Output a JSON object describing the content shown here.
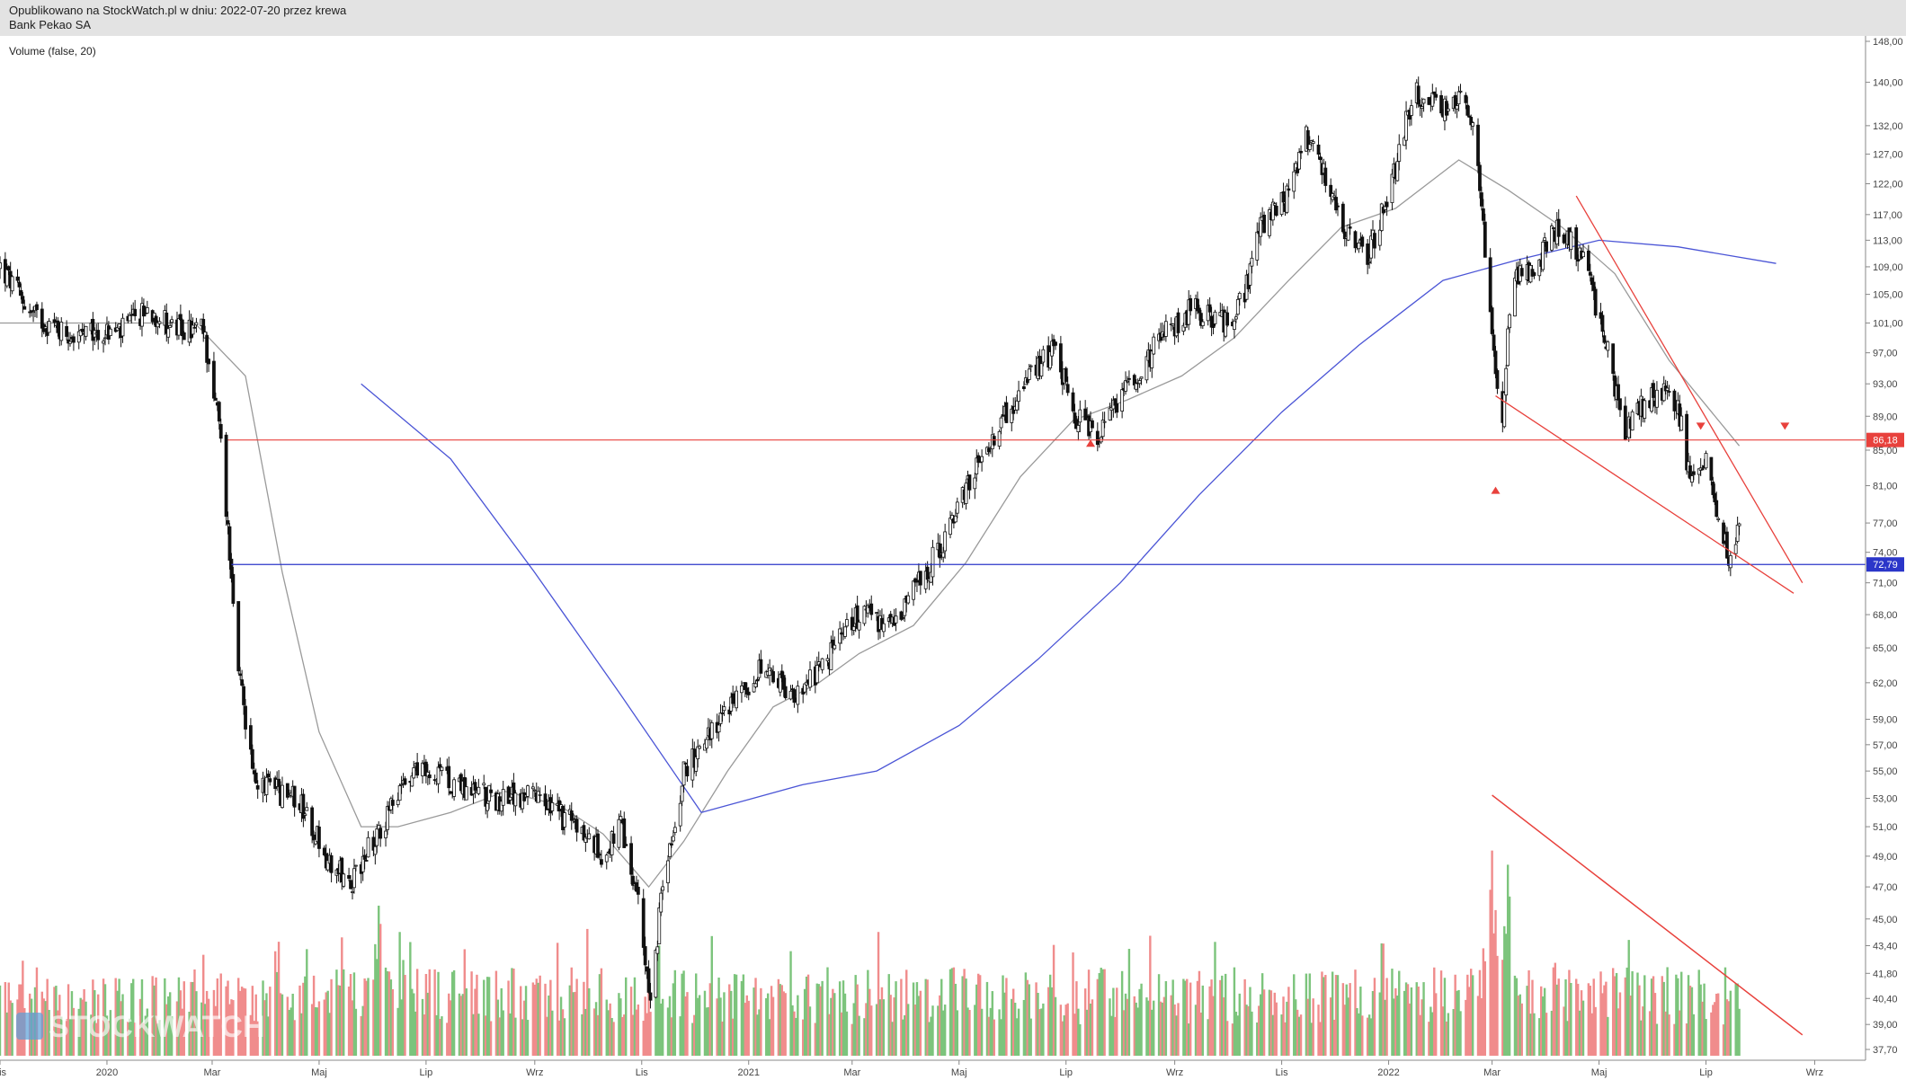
{
  "header": {
    "line1": "Opublikowano na StockWatch.pl w dniu: 2022-07-20 przez krewa",
    "line2": "Bank Pekao SA"
  },
  "indicator_label": "Volume (false, 20)",
  "logo_text": "STOCKWATCH",
  "colors": {
    "candle": "#111111",
    "ma_gray": "#9a9a9a",
    "ma_blue": "#4b55d6",
    "resistance": "#e8413c",
    "support": "#2b36c9",
    "vol_up": "#7cc47c",
    "vol_down": "#f08c8c",
    "header_bg": "#e3e3e3"
  },
  "chart_data": {
    "type": "candlestick",
    "title": "Bank Pekao SA",
    "y_axis_ticks": [
      "148,00",
      "140,00",
      "132,00",
      "127,00",
      "122,00",
      "117,00",
      "113,00",
      "109,00",
      "105,00",
      "101,00",
      "97,00",
      "93,00",
      "89,00",
      "85,00",
      "81,00",
      "77,00",
      "74,00",
      "71,00",
      "68,00",
      "65,00",
      "62,00",
      "59,00",
      "57,00",
      "55,00",
      "53,00",
      "51,00",
      "49,00",
      "47,00",
      "45,00",
      "43,40",
      "41,80",
      "40,40",
      "39,00",
      "37,70"
    ],
    "ylim": [
      37.7,
      148.0
    ],
    "y_scale": "log",
    "x_axis_ticks": [
      "Lis",
      "2020",
      "Mar",
      "Maj",
      "Lip",
      "Wrz",
      "Lis",
      "2021",
      "Mar",
      "Maj",
      "Lip",
      "Wrz",
      "Lis",
      "2022",
      "Mar",
      "Maj",
      "Lip",
      "Wrz"
    ],
    "x_start": "2019-11-01",
    "x_end": "2022-09-30",
    "price_path": [
      [
        "2019-11-01",
        109
      ],
      [
        "2019-11-20",
        102
      ],
      [
        "2019-12-15",
        99
      ],
      [
        "2020-01-10",
        100
      ],
      [
        "2020-01-25",
        103
      ],
      [
        "2020-02-10",
        100
      ],
      [
        "2020-02-25",
        100
      ],
      [
        "2020-03-05",
        88
      ],
      [
        "2020-03-12",
        72
      ],
      [
        "2020-03-16",
        63
      ],
      [
        "2020-03-25",
        54
      ],
      [
        "2020-04-20",
        53
      ],
      [
        "2020-05-05",
        49
      ],
      [
        "2020-05-20",
        47.5
      ],
      [
        "2020-06-05",
        51
      ],
      [
        "2020-06-25",
        55
      ],
      [
        "2020-07-20",
        54
      ],
      [
        "2020-08-10",
        53
      ],
      [
        "2020-09-01",
        53
      ],
      [
        "2020-09-25",
        51
      ],
      [
        "2020-10-10",
        49
      ],
      [
        "2020-10-20",
        51
      ],
      [
        "2020-10-30",
        46
      ],
      [
        "2020-11-06",
        40.5
      ],
      [
        "2020-11-12",
        46
      ],
      [
        "2020-11-25",
        55
      ],
      [
        "2020-12-15",
        59
      ],
      [
        "2021-01-08",
        63
      ],
      [
        "2021-01-25",
        61
      ],
      [
        "2021-02-10",
        63
      ],
      [
        "2021-03-05",
        68
      ],
      [
        "2021-03-20",
        67
      ],
      [
        "2021-04-05",
        70
      ],
      [
        "2021-04-25",
        76
      ],
      [
        "2021-05-15",
        85
      ],
      [
        "2021-06-05",
        92
      ],
      [
        "2021-06-25",
        98
      ],
      [
        "2021-07-05",
        89
      ],
      [
        "2021-07-20",
        87
      ],
      [
        "2021-08-05",
        93
      ],
      [
        "2021-08-25",
        99
      ],
      [
        "2021-09-10",
        103
      ],
      [
        "2021-09-30",
        101
      ],
      [
        "2021-10-10",
        104
      ],
      [
        "2021-10-20",
        115
      ],
      [
        "2021-11-05",
        120
      ],
      [
        "2021-11-15",
        130
      ],
      [
        "2021-11-30",
        120
      ],
      [
        "2021-12-10",
        113
      ],
      [
        "2021-12-20",
        110
      ],
      [
        "2022-01-05",
        125
      ],
      [
        "2022-01-15",
        138
      ],
      [
        "2022-02-05",
        135
      ],
      [
        "2022-02-12",
        138
      ],
      [
        "2022-02-20",
        128
      ],
      [
        "2022-02-25",
        112
      ],
      [
        "2022-03-01",
        100
      ],
      [
        "2022-03-07",
        88
      ],
      [
        "2022-03-12",
        108
      ],
      [
        "2022-03-25",
        108
      ],
      [
        "2022-04-05",
        115
      ],
      [
        "2022-04-15",
        113
      ],
      [
        "2022-04-25",
        108
      ],
      [
        "2022-05-05",
        98
      ],
      [
        "2022-05-15",
        87
      ],
      [
        "2022-05-25",
        90
      ],
      [
        "2022-06-05",
        92
      ],
      [
        "2022-06-15",
        90
      ],
      [
        "2022-06-22",
        82
      ],
      [
        "2022-06-30",
        84
      ],
      [
        "2022-07-05",
        80
      ],
      [
        "2022-07-12",
        75
      ],
      [
        "2022-07-15",
        73
      ],
      [
        "2022-07-20",
        77
      ]
    ],
    "moving_average_short": [
      [
        "2019-11-01",
        101
      ],
      [
        "2019-12-15",
        101
      ],
      [
        "2020-02-20",
        101
      ],
      [
        "2020-03-20",
        94
      ],
      [
        "2020-04-10",
        72
      ],
      [
        "2020-05-01",
        58
      ],
      [
        "2020-05-25",
        51
      ],
      [
        "2020-06-15",
        51
      ],
      [
        "2020-07-15",
        52
      ],
      [
        "2020-08-15",
        53.5
      ],
      [
        "2020-09-15",
        52.5
      ],
      [
        "2020-10-10",
        50.5
      ],
      [
        "2020-11-05",
        47
      ],
      [
        "2020-11-25",
        50
      ],
      [
        "2020-12-20",
        55
      ],
      [
        "2021-01-15",
        60
      ],
      [
        "2021-02-10",
        62
      ],
      [
        "2021-03-05",
        64.5
      ],
      [
        "2021-04-05",
        67
      ],
      [
        "2021-05-05",
        73
      ],
      [
        "2021-06-05",
        82
      ],
      [
        "2021-07-05",
        88.5
      ],
      [
        "2021-08-05",
        91
      ],
      [
        "2021-09-05",
        94
      ],
      [
        "2021-10-05",
        99
      ],
      [
        "2021-11-05",
        107
      ],
      [
        "2021-12-05",
        115
      ],
      [
        "2022-01-05",
        118
      ],
      [
        "2022-02-10",
        126
      ],
      [
        "2022-03-10",
        121
      ],
      [
        "2022-04-10",
        115
      ],
      [
        "2022-05-10",
        108
      ],
      [
        "2022-06-10",
        96
      ],
      [
        "2022-07-20",
        85.5
      ]
    ],
    "moving_average_long": [
      [
        "2020-05-25",
        93
      ],
      [
        "2020-07-15",
        84
      ],
      [
        "2020-09-01",
        72
      ],
      [
        "2020-10-20",
        61
      ],
      [
        "2020-12-05",
        52
      ],
      [
        "2020-12-20",
        52.5
      ],
      [
        "2021-02-01",
        54
      ],
      [
        "2021-03-15",
        55
      ],
      [
        "2021-05-01",
        58.5
      ],
      [
        "2021-06-15",
        64
      ],
      [
        "2021-08-01",
        71
      ],
      [
        "2021-09-15",
        80
      ],
      [
        "2021-11-01",
        89.5
      ],
      [
        "2021-12-15",
        98
      ],
      [
        "2022-02-01",
        107
      ],
      [
        "2022-03-15",
        110
      ],
      [
        "2022-05-01",
        113
      ],
      [
        "2022-06-15",
        112
      ],
      [
        "2022-08-10",
        109.5
      ]
    ],
    "horizontal_levels": [
      {
        "value": 86.18,
        "label": "86,18",
        "from": "2020-03-10",
        "color": "resistance"
      },
      {
        "value": 72.79,
        "label": "72,79",
        "from": "2020-03-12",
        "color": "support"
      }
    ],
    "trendlines": [
      {
        "from": [
          "2022-04-18",
          120
        ],
        "to": [
          "2022-08-25",
          71
        ],
        "color": "resistance"
      },
      {
        "from": [
          "2022-03-03",
          91.5
        ],
        "to": [
          "2022-08-20",
          70
        ],
        "color": "resistance"
      }
    ],
    "markers": [
      {
        "date": "2021-07-15",
        "value": 85.8,
        "shape": "triangle-up"
      },
      {
        "date": "2022-03-03",
        "value": 80.5,
        "shape": "triangle-up"
      },
      {
        "date": "2022-06-28",
        "value": 87.8,
        "shape": "triangle-down"
      },
      {
        "date": "2022-08-15",
        "value": 87.8,
        "shape": "triangle-down"
      }
    ],
    "volume_trendline": {
      "from": [
        "2022-03-01",
        1.0
      ],
      "to": [
        "2022-08-25",
        0.08
      ]
    },
    "volume_spikes": [
      [
        "2020-03-15",
        0.35
      ],
      [
        "2020-04-05",
        0.45
      ],
      [
        "2020-04-25",
        0.5
      ],
      [
        "2020-05-15",
        0.55
      ],
      [
        "2020-06-05",
        0.9
      ],
      [
        "2020-06-20",
        0.55
      ],
      [
        "2020-11-10",
        0.45
      ],
      [
        "2022-02-28",
        1.0
      ],
      [
        "2022-03-05",
        0.6
      ],
      [
        "2022-03-10",
        0.75
      ],
      [
        "2022-04-25",
        0.35
      ],
      [
        "2022-05-10",
        0.4
      ]
    ]
  }
}
